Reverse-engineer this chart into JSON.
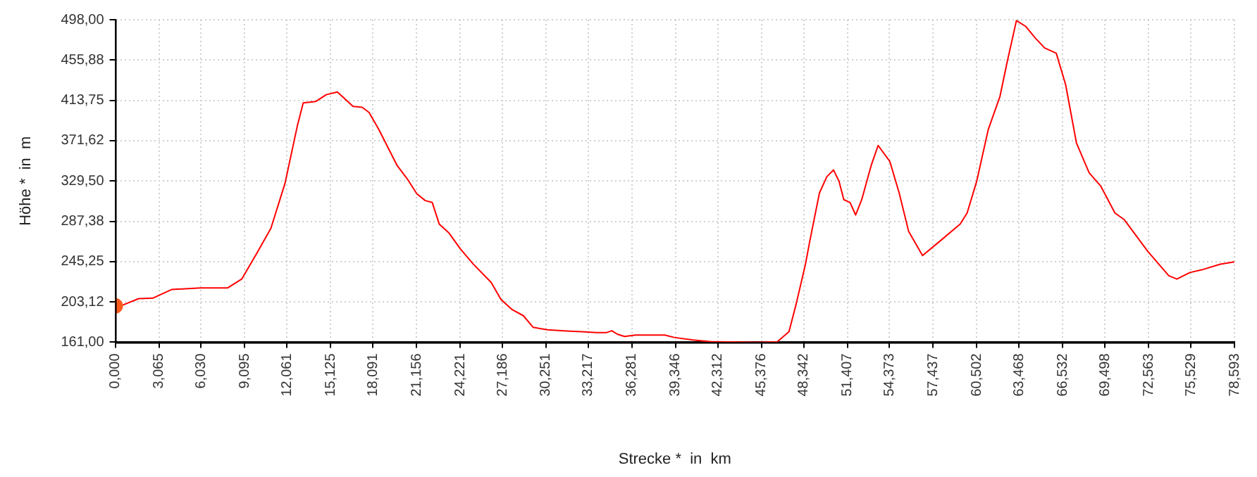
{
  "chart_data": {
    "type": "line",
    "xlabel": "Strecke *  in  km",
    "ylabel": "Höhe *  in  m",
    "xlim": [
      0,
      78.593
    ],
    "ylim": [
      161,
      498
    ],
    "xticks": [
      {
        "value": 0,
        "label": "0,000"
      },
      {
        "value": 3.065,
        "label": "3,065"
      },
      {
        "value": 6.03,
        "label": "6,030"
      },
      {
        "value": 9.095,
        "label": "9,095"
      },
      {
        "value": 12.061,
        "label": "12,061"
      },
      {
        "value": 15.125,
        "label": "15,125"
      },
      {
        "value": 18.091,
        "label": "18,091"
      },
      {
        "value": 21.156,
        "label": "21,156"
      },
      {
        "value": 24.221,
        "label": "24,221"
      },
      {
        "value": 27.186,
        "label": "27,186"
      },
      {
        "value": 30.251,
        "label": "30,251"
      },
      {
        "value": 33.217,
        "label": "33,217"
      },
      {
        "value": 36.281,
        "label": "36,281"
      },
      {
        "value": 39.346,
        "label": "39,346"
      },
      {
        "value": 42.312,
        "label": "42,312"
      },
      {
        "value": 45.376,
        "label": "45,376"
      },
      {
        "value": 48.342,
        "label": "48,342"
      },
      {
        "value": 51.407,
        "label": "51,407"
      },
      {
        "value": 54.373,
        "label": "54,373"
      },
      {
        "value": 57.437,
        "label": "57,437"
      },
      {
        "value": 60.502,
        "label": "60,502"
      },
      {
        "value": 63.468,
        "label": "63,468"
      },
      {
        "value": 66.532,
        "label": "66,532"
      },
      {
        "value": 69.498,
        "label": "69,498"
      },
      {
        "value": 72.563,
        "label": "72,563"
      },
      {
        "value": 75.529,
        "label": "75,529"
      },
      {
        "value": 78.593,
        "label": "78,593"
      }
    ],
    "yticks": [
      {
        "value": 161,
        "label": "161,00"
      },
      {
        "value": 203.12,
        "label": "203,12"
      },
      {
        "value": 245.25,
        "label": "245,25"
      },
      {
        "value": 287.38,
        "label": "287,38"
      },
      {
        "value": 329.5,
        "label": "329,50"
      },
      {
        "value": 371.62,
        "label": "371,62"
      },
      {
        "value": 413.75,
        "label": "413,75"
      },
      {
        "value": 455.88,
        "label": "455,88"
      },
      {
        "value": 498,
        "label": "498,00"
      }
    ],
    "grid": true,
    "legend": false,
    "series": [
      {
        "color": "#ff0000",
        "marker": "none",
        "x": [
          0,
          0.56,
          1.64,
          2.63,
          3.95,
          5.99,
          7.9,
          8.88,
          9.94,
          10.93,
          11.92,
          12.8,
          13.2,
          14.09,
          14.81,
          15.6,
          16.7,
          17.34,
          17.83,
          18.52,
          19.8,
          20.49,
          21.18,
          21.77,
          22.26,
          22.75,
          23.44,
          24.23,
          25.12,
          26.4,
          27.09,
          27.88,
          28.66,
          29.35,
          30.34,
          31.72,
          33.0,
          33.79,
          34.48,
          34.87,
          35.26,
          35.76,
          36.54,
          38.59,
          39.25,
          40.57,
          41.88,
          45.18,
          46.49,
          47.31,
          47.8,
          48.46,
          48.79,
          49.45,
          49.97,
          50.44,
          50.83,
          51.16,
          51.6,
          51.99,
          52.42,
          53.08,
          53.57,
          54.39,
          55.05,
          55.71,
          56.69,
          58.02,
          59.33,
          59.82,
          60.49,
          61.3,
          62.13,
          62.62,
          63.28,
          63.94,
          64.6,
          65.26,
          66.08,
          66.74,
          67.5,
          68.39,
          69.21,
          70.2,
          70.86,
          72.5,
          73.16,
          73.98,
          74.55,
          75.46,
          76.29,
          77.6,
          78.593
        ],
        "values": [
          199,
          200,
          206.5,
          207,
          216,
          217.8,
          217.8,
          227,
          254,
          280,
          327,
          388,
          411,
          412.6,
          419.6,
          422.5,
          407.4,
          406.5,
          401,
          383,
          345.5,
          332,
          316,
          309,
          307,
          284.5,
          275,
          258.6,
          243,
          223.4,
          205.6,
          195,
          188.7,
          176.5,
          174,
          172.7,
          171.8,
          171,
          171,
          173,
          169.4,
          167,
          168.5,
          168.5,
          166,
          163.3,
          161.5,
          161,
          161.5,
          172,
          200,
          242,
          268,
          317,
          334,
          341,
          329,
          310,
          307,
          294,
          310,
          345.5,
          366.6,
          350,
          317,
          277,
          251.6,
          268,
          284.5,
          296,
          329,
          383,
          418,
          453,
          497,
          491,
          479,
          468.5,
          463,
          430,
          369,
          338,
          324,
          296,
          289,
          256,
          244.6,
          230.5,
          227,
          233.8,
          236.6,
          242.5,
          245
        ]
      },
      {
        "type": "scatter",
        "color": "#ff5a1e",
        "marker": "circle",
        "x": [
          0
        ],
        "values": [
          199
        ]
      }
    ]
  }
}
